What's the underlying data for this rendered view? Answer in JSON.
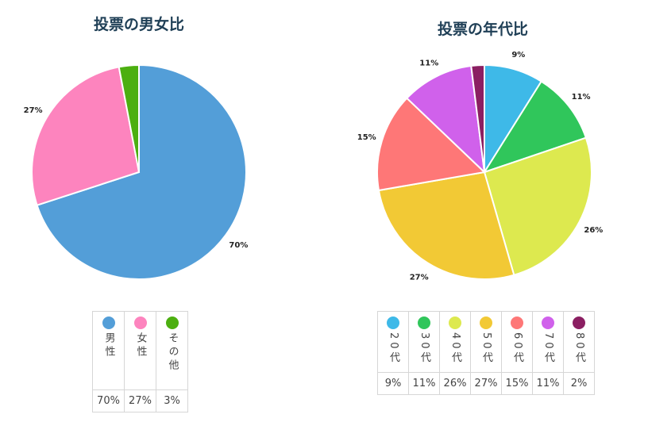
{
  "chart_data": [
    {
      "type": "pie",
      "title": "投票の男女比",
      "categories": [
        "男性",
        "女性",
        "その他"
      ],
      "values": [
        70,
        27,
        3
      ],
      "labels": [
        "70%",
        "27%",
        ""
      ],
      "colors": [
        "#539ed8",
        "#fd84be",
        "#4caf10"
      ],
      "legend": "bottom",
      "table_values": [
        "70%",
        "27%",
        "3%"
      ]
    },
    {
      "type": "pie",
      "title": "投票の年代比",
      "categories": [
        "20代",
        "30代",
        "40代",
        "50代",
        "60代",
        "70代",
        "80代"
      ],
      "values": [
        9,
        11,
        26,
        27,
        15,
        11,
        2
      ],
      "labels": [
        "9%",
        "11%",
        "26%",
        "27%",
        "15%",
        "11%",
        ""
      ],
      "colors": [
        "#3eb9e8",
        "#30c65b",
        "#dde94f",
        "#f2c935",
        "#fe7777",
        "#d061eb",
        "#8b1f62"
      ],
      "legend": "bottom",
      "table_values": [
        "9%",
        "11%",
        "26%",
        "27%",
        "15%",
        "11%",
        "2%"
      ]
    }
  ]
}
